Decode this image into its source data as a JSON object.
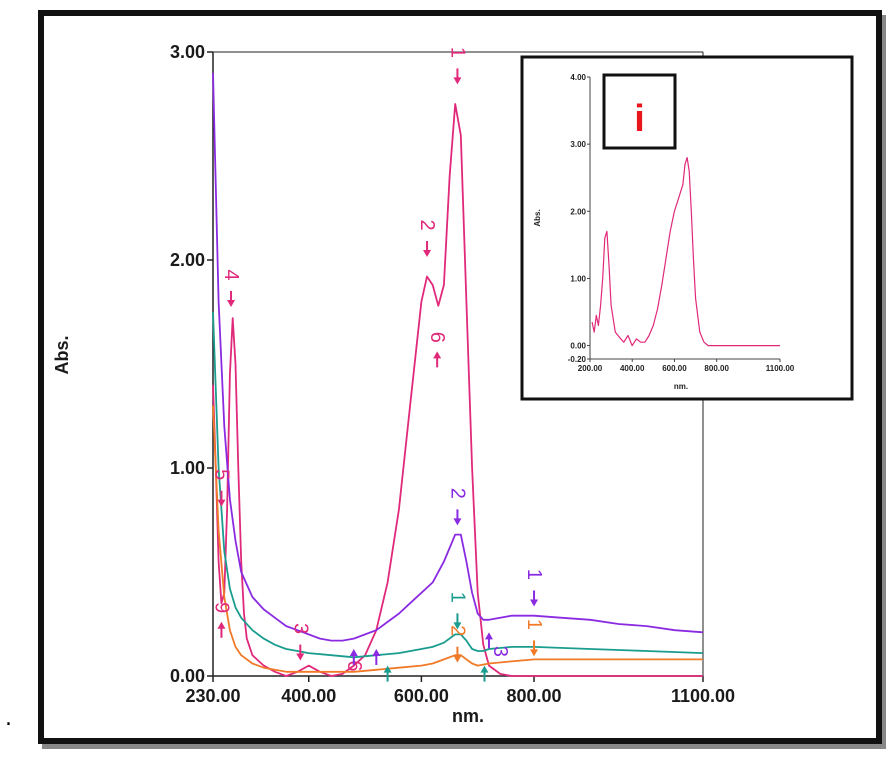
{
  "stray_mark": ".",
  "chart_data": [
    {
      "type": "line",
      "xlabel": "nm.",
      "ylabel": "Abs.",
      "xlim": [
        230,
        1100
      ],
      "ylim": [
        0,
        3
      ],
      "x_ticks": [
        "230.00",
        "400.00",
        "600.00",
        "800.00",
        "1100.00"
      ],
      "y_ticks": [
        "0.00",
        "1.00",
        "2.00",
        "3.00"
      ],
      "series": [
        {
          "color": "#e0297a",
          "x": [
            230,
            235,
            240,
            245,
            250,
            255,
            260,
            265,
            270,
            275,
            280,
            285,
            290,
            300,
            320,
            340,
            360,
            380,
            400,
            420,
            440,
            460,
            480,
            500,
            520,
            540,
            560,
            580,
            600,
            610,
            620,
            630,
            640,
            650,
            660,
            670,
            680,
            690,
            700,
            710,
            720,
            740,
            760,
            800,
            900,
            1000,
            1100
          ],
          "y": [
            1.4,
            1.0,
            0.55,
            0.35,
            0.4,
            0.8,
            1.45,
            1.72,
            1.5,
            1.0,
            0.55,
            0.3,
            0.18,
            0.1,
            0.05,
            0.02,
            0.0,
            0.02,
            0.05,
            0.02,
            0.0,
            0.01,
            0.05,
            0.1,
            0.22,
            0.45,
            0.8,
            1.3,
            1.8,
            1.92,
            1.88,
            1.78,
            1.88,
            2.4,
            2.75,
            2.6,
            1.8,
            1.0,
            0.4,
            0.15,
            0.05,
            0.01,
            0.0,
            0.0,
            0.0,
            0.0,
            0.0
          ]
        },
        {
          "color": "#8a2be2",
          "x": [
            230,
            240,
            250,
            260,
            270,
            280,
            300,
            320,
            340,
            360,
            380,
            400,
            420,
            440,
            460,
            480,
            500,
            520,
            540,
            560,
            580,
            600,
            620,
            640,
            660,
            670,
            680,
            690,
            700,
            710,
            720,
            740,
            760,
            780,
            800,
            850,
            900,
            950,
            1000,
            1050,
            1100
          ],
          "y": [
            2.9,
            1.8,
            1.2,
            0.85,
            0.65,
            0.5,
            0.38,
            0.32,
            0.28,
            0.24,
            0.22,
            0.2,
            0.18,
            0.17,
            0.17,
            0.18,
            0.2,
            0.22,
            0.26,
            0.3,
            0.35,
            0.4,
            0.45,
            0.55,
            0.68,
            0.68,
            0.55,
            0.4,
            0.3,
            0.27,
            0.27,
            0.28,
            0.29,
            0.29,
            0.29,
            0.28,
            0.27,
            0.25,
            0.24,
            0.22,
            0.21
          ]
        },
        {
          "color": "#1a9c8e",
          "x": [
            230,
            240,
            250,
            260,
            270,
            280,
            300,
            320,
            340,
            360,
            380,
            400,
            440,
            480,
            520,
            560,
            600,
            620,
            640,
            660,
            670,
            680,
            690,
            700,
            710,
            720,
            760,
            800,
            900,
            1000,
            1100
          ],
          "y": [
            1.75,
            1.0,
            0.6,
            0.42,
            0.33,
            0.28,
            0.22,
            0.18,
            0.15,
            0.13,
            0.12,
            0.11,
            0.1,
            0.09,
            0.1,
            0.11,
            0.13,
            0.14,
            0.16,
            0.2,
            0.2,
            0.17,
            0.13,
            0.12,
            0.12,
            0.13,
            0.14,
            0.14,
            0.13,
            0.12,
            0.11
          ]
        },
        {
          "color": "#f07a28",
          "x": [
            230,
            240,
            250,
            260,
            270,
            280,
            300,
            320,
            340,
            360,
            380,
            400,
            440,
            480,
            520,
            560,
            600,
            620,
            640,
            660,
            670,
            680,
            690,
            700,
            720,
            760,
            800,
            900,
            1000,
            1100
          ],
          "y": [
            1.3,
            0.7,
            0.38,
            0.22,
            0.14,
            0.1,
            0.06,
            0.04,
            0.03,
            0.02,
            0.02,
            0.02,
            0.02,
            0.02,
            0.03,
            0.04,
            0.05,
            0.06,
            0.08,
            0.1,
            0.1,
            0.08,
            0.06,
            0.05,
            0.06,
            0.07,
            0.08,
            0.08,
            0.08,
            0.08
          ]
        }
      ],
      "annotations": [
        {
          "text": "1",
          "color": "#e0297a",
          "x": 664,
          "y": 2.95,
          "dir": "down"
        },
        {
          "text": "2",
          "color": "#e0297a",
          "x": 610,
          "y": 2.12,
          "dir": "down"
        },
        {
          "text": "6",
          "color": "#e0297a",
          "x": 628,
          "y": 1.58,
          "dir": "up"
        },
        {
          "text": "4",
          "color": "#e0297a",
          "x": 262,
          "y": 1.88,
          "dir": "down"
        },
        {
          "text": "5",
          "color": "#e0297a",
          "x": 245,
          "y": 0.92,
          "dir": "down"
        },
        {
          "text": "9",
          "color": "#e0297a",
          "x": 245,
          "y": 0.28,
          "dir": "up"
        },
        {
          "text": "3",
          "color": "#e0297a",
          "x": 385,
          "y": 0.18,
          "dir": "down"
        },
        {
          "text": "6",
          "color": "#e0297a",
          "x": 480,
          "y": 0.0,
          "dir": "none"
        },
        {
          "text": "2",
          "color": "#8a2be2",
          "x": 664,
          "y": 0.83,
          "dir": "down"
        },
        {
          "text": "1",
          "color": "#8a2be2",
          "x": 800,
          "y": 0.44,
          "dir": "down"
        },
        {
          "text": "3",
          "color": "#8a2be2",
          "x": 740,
          "y": 0.07,
          "dir": "none"
        },
        {
          "text": "1",
          "color": "#1a9c8e",
          "x": 664,
          "y": 0.33,
          "dir": "down"
        },
        {
          "text": "2",
          "color": "#f07a28",
          "x": 664,
          "y": 0.17,
          "dir": "down"
        },
        {
          "text": "1",
          "color": "#f07a28",
          "x": 800,
          "y": 0.2,
          "dir": "down"
        }
      ],
      "extra_arrows": [
        {
          "color": "#8a2be2",
          "x": 480,
          "y": 0.13,
          "dir": "up"
        },
        {
          "color": "#8a2be2",
          "x": 520,
          "y": 0.13,
          "dir": "up"
        },
        {
          "color": "#8a2be2",
          "x": 720,
          "y": 0.21,
          "dir": "up"
        },
        {
          "color": "#1a9c8e",
          "x": 540,
          "y": 0.05,
          "dir": "up"
        },
        {
          "color": "#1a9c8e",
          "x": 712,
          "y": 0.05,
          "dir": "up"
        }
      ]
    },
    {
      "type": "line",
      "panel_label": "i",
      "panel_label_color": "#e8151c",
      "xlabel": "nm.",
      "ylabel": "Abs.",
      "xlim": [
        200,
        1100
      ],
      "ylim": [
        -0.2,
        4
      ],
      "x_ticks": [
        "200.00",
        "400.00",
        "600.00",
        "800.00",
        "1100.00"
      ],
      "y_ticks": [
        "-0.20",
        "0.00",
        "1.00",
        "2.00",
        "3.00",
        "4.00"
      ],
      "series": [
        {
          "color": "#e0297a",
          "x": [
            210,
            220,
            230,
            240,
            250,
            260,
            270,
            280,
            290,
            300,
            320,
            340,
            360,
            380,
            400,
            420,
            440,
            460,
            480,
            500,
            520,
            540,
            560,
            580,
            600,
            620,
            640,
            650,
            660,
            670,
            680,
            690,
            700,
            720,
            740,
            760,
            800,
            900,
            1000,
            1100
          ],
          "y": [
            0.35,
            0.2,
            0.45,
            0.3,
            0.6,
            1.0,
            1.6,
            1.7,
            1.2,
            0.6,
            0.2,
            0.12,
            0.05,
            0.15,
            0.0,
            0.1,
            0.05,
            0.05,
            0.15,
            0.3,
            0.55,
            0.9,
            1.3,
            1.7,
            2.0,
            2.2,
            2.4,
            2.7,
            2.8,
            2.6,
            2.0,
            1.3,
            0.7,
            0.2,
            0.05,
            0.0,
            0.0,
            0.0,
            0.0,
            0.0
          ]
        }
      ]
    }
  ]
}
